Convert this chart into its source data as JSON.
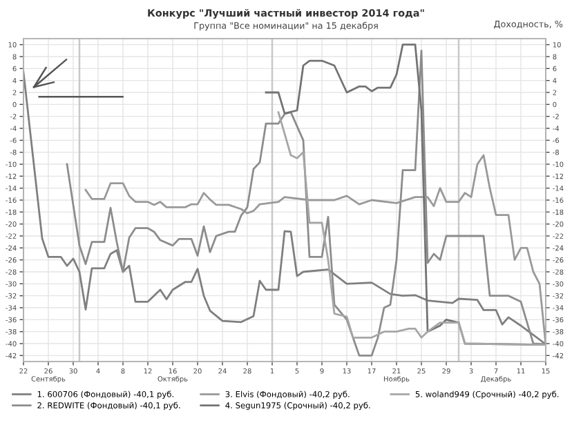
{
  "chart_data": {
    "type": "line",
    "title": "Конкурс \"Лучший частный инвестор 2014 года\"",
    "subtitle": "Группа \"Все номинации\" на 15 декабря",
    "y2label": "Доходность, %",
    "xlim": [
      "2014-09-22",
      "2014-12-15"
    ],
    "xticks": [
      {
        "value": "2014-09-22",
        "label": "22"
      },
      {
        "value": "2014-09-26",
        "label": "26\nСентябрь"
      },
      {
        "value": "2014-09-30",
        "label": "30"
      },
      {
        "value": "2014-10-04",
        "label": "4"
      },
      {
        "value": "2014-10-08",
        "label": "8"
      },
      {
        "value": "2014-10-12",
        "label": "12"
      },
      {
        "value": "2014-10-16",
        "label": "16\nОктябрь"
      },
      {
        "value": "2014-10-20",
        "label": "20"
      },
      {
        "value": "2014-10-24",
        "label": "24"
      },
      {
        "value": "2014-10-28",
        "label": "28"
      },
      {
        "value": "2014-11-01",
        "label": "1"
      },
      {
        "value": "2014-11-05",
        "label": "5"
      },
      {
        "value": "2014-11-09",
        "label": "9"
      },
      {
        "value": "2014-11-13",
        "label": "13"
      },
      {
        "value": "2014-11-17",
        "label": "17"
      },
      {
        "value": "2014-11-21",
        "label": "21\nНоябрь"
      },
      {
        "value": "2014-11-25",
        "label": "25"
      },
      {
        "value": "2014-11-29",
        "label": "29"
      },
      {
        "value": "2014-12-03",
        "label": "3"
      },
      {
        "value": "2014-12-07",
        "label": "7\nДекабрь"
      },
      {
        "value": "2014-12-11",
        "label": "11"
      },
      {
        "value": "2014-12-15",
        "label": "15"
      }
    ],
    "ylim": [
      -43,
      11
    ],
    "yticks": [
      -42,
      -40,
      -38,
      -36,
      -34,
      -32,
      -30,
      -28,
      -26,
      -24,
      -22,
      -20,
      -18,
      -16,
      -14,
      -12,
      -10,
      -8,
      -6,
      -4,
      -2,
      0,
      2,
      4,
      6,
      8,
      10
    ],
    "y2lim": [
      -43,
      11
    ],
    "y2ticks": [
      -42,
      -40,
      -38,
      -36,
      -34,
      -32,
      -30,
      -28,
      -26,
      -24,
      -22,
      -20,
      -18,
      -16,
      -14,
      -12,
      -10,
      -8,
      -6,
      -4,
      -2,
      0,
      2,
      4,
      6,
      8,
      10
    ],
    "grid": true,
    "legend": "bottom",
    "line_style": "solid",
    "marker": "none",
    "ref_lines": [
      {
        "axis": "x",
        "value": "2014-10-01",
        "color": "#c8c8c8"
      },
      {
        "axis": "x",
        "value": "2014-11-01",
        "color": "#c8c8c8"
      },
      {
        "axis": "x",
        "value": "2014-12-01",
        "color": "#c8c8c8"
      }
    ],
    "series": [
      {
        "name": "1. 600706 (Фондовый) -40,1 руб.",
        "color": "#7f7f7f",
        "x": [
          "2014-09-22",
          "2014-09-25",
          "2014-09-26",
          "2014-09-28",
          "2014-09-29",
          "2014-09-30",
          "2014-10-01",
          "2014-10-02",
          "2014-10-03",
          "2014-10-05",
          "2014-10-06",
          "2014-10-07",
          "2014-10-08",
          "2014-10-09",
          "2014-10-10",
          "2014-10-12",
          "2014-10-14",
          "2014-10-15",
          "2014-10-16",
          "2014-10-18",
          "2014-10-19",
          "2014-10-20",
          "2014-10-21",
          "2014-10-22",
          "2014-10-24",
          "2014-10-27",
          "2014-10-29",
          "2014-10-30",
          "2014-10-31",
          "2014-11-02",
          "2014-11-03",
          "2014-11-04",
          "2014-11-05",
          "2014-11-06",
          "2014-11-10",
          "2014-11-13",
          "2014-11-17",
          "2014-11-20",
          "2014-11-22",
          "2014-11-24",
          "2014-11-26",
          "2014-11-30",
          "2014-12-01",
          "2014-12-04",
          "2014-12-05",
          "2014-12-07",
          "2014-12-08",
          "2014-12-09",
          "2014-12-11",
          "2014-12-15"
        ],
        "values": [
          5.4,
          -22.4,
          -25.5,
          -25.5,
          -27,
          -25.8,
          -28,
          -34.3,
          -27.4,
          -27.4,
          -25,
          -24.4,
          -28,
          -27,
          -33,
          -33,
          -31,
          -32.6,
          -31,
          -29.7,
          -29.7,
          -27.5,
          -32,
          -34.5,
          -36.2,
          -36.4,
          -35.4,
          -29.5,
          -31,
          -31,
          -21.2,
          -21.3,
          -28.7,
          -28,
          -27.6,
          -30,
          -29.8,
          -31.7,
          -32,
          -31.9,
          -32.8,
          -33.2,
          -32.5,
          -32.7,
          -34.4,
          -34.4,
          -36.8,
          -35.6,
          -37,
          -40.1
        ]
      },
      {
        "name": "2. REDWITE (Фондовый) -40,1 руб.",
        "color": "#8c8c8c",
        "x": [
          "2014-09-29",
          "2014-10-01",
          "2014-10-02",
          "2014-10-03",
          "2014-10-05",
          "2014-10-06",
          "2014-10-07",
          "2014-10-08",
          "2014-10-09",
          "2014-10-10",
          "2014-10-12",
          "2014-10-13",
          "2014-10-14",
          "2014-10-16",
          "2014-10-17",
          "2014-10-19",
          "2014-10-20",
          "2014-10-21",
          "2014-10-22",
          "2014-10-23",
          "2014-10-25",
          "2014-10-26",
          "2014-10-27",
          "2014-10-28",
          "2014-10-29",
          "2014-10-30",
          "2014-10-31",
          "2014-11-02",
          "2014-11-03",
          "2014-11-04",
          "2014-11-06",
          "2014-11-07",
          "2014-11-09",
          "2014-11-10",
          "2014-11-11",
          "2014-11-13",
          "2014-11-15",
          "2014-11-17",
          "2014-11-18",
          "2014-11-19",
          "2014-11-20",
          "2014-11-21",
          "2014-11-22",
          "2014-11-24",
          "2014-11-25",
          "2014-11-26",
          "2014-11-27",
          "2014-11-28",
          "2014-11-29",
          "2014-12-01",
          "2014-12-03",
          "2014-12-05",
          "2014-12-06",
          "2014-12-09",
          "2014-12-11",
          "2014-12-13",
          "2014-12-15"
        ],
        "values": [
          -10,
          -23.6,
          -26.7,
          -23,
          -23,
          -17.3,
          -23,
          -28,
          -22.3,
          -20.7,
          -20.7,
          -21.3,
          -22.7,
          -23.6,
          -22.5,
          -22.5,
          -25.3,
          -20.4,
          -24.7,
          -22,
          -21.3,
          -21.3,
          -18.6,
          -17.2,
          -10.8,
          -9.7,
          -3.2,
          -3.2,
          -1.6,
          -1.3,
          -6,
          -25.5,
          -25.5,
          -18.8,
          -33.5,
          -36,
          -42,
          -42,
          -39,
          -34,
          -33.5,
          -26,
          -11,
          -11,
          9,
          -26.5,
          -25,
          -26,
          -22,
          -22,
          -22,
          -22,
          -32,
          -32,
          -33,
          -40,
          -40.1
        ]
      },
      {
        "name": "3. Elvis (Фондовый) -40,2 руб.",
        "color": "#999999",
        "x": [
          "2014-10-02",
          "2014-10-03",
          "2014-10-05",
          "2014-10-06",
          "2014-10-08",
          "2014-10-09",
          "2014-10-10",
          "2014-10-12",
          "2014-10-13",
          "2014-10-14",
          "2014-10-15",
          "2014-10-18",
          "2014-10-19",
          "2014-10-20",
          "2014-10-21",
          "2014-10-22",
          "2014-10-23",
          "2014-10-25",
          "2014-10-27",
          "2014-10-28",
          "2014-10-29",
          "2014-10-30",
          "2014-11-02",
          "2014-11-03",
          "2014-11-07",
          "2014-11-11",
          "2014-11-13",
          "2014-11-15",
          "2014-11-17",
          "2014-11-21",
          "2014-11-24",
          "2014-11-26",
          "2014-11-27",
          "2014-11-28",
          "2014-11-29",
          "2014-12-01",
          "2014-12-02",
          "2014-12-03",
          "2014-12-04",
          "2014-12-05",
          "2014-12-06",
          "2014-12-07",
          "2014-12-09",
          "2014-12-10",
          "2014-12-11",
          "2014-12-12",
          "2014-12-13",
          "2014-12-14",
          "2014-12-15"
        ],
        "values": [
          -14.3,
          -15.8,
          -15.8,
          -13.2,
          -13.2,
          -15.3,
          -16.3,
          -16.3,
          -16.8,
          -16.3,
          -17.2,
          -17.2,
          -16.7,
          -16.7,
          -14.8,
          -15.9,
          -16.8,
          -16.8,
          -17.5,
          -18.2,
          -17.8,
          -16.7,
          -16.3,
          -15.5,
          -16,
          -16,
          -15.3,
          -16.7,
          -16,
          -16.5,
          -15.5,
          -15.5,
          -17,
          -14,
          -16.3,
          -16.3,
          -14.8,
          -15.5,
          -10,
          -8.5,
          -14,
          -18.5,
          -18.5,
          -26,
          -24,
          -24,
          -28,
          -30,
          -40.2
        ]
      },
      {
        "name": "4. Segun1975 (Срочный) -40,2 руб.",
        "color": "#737373",
        "x": [
          "2014-10-31",
          "2014-11-02",
          "2014-11-03",
          "2014-11-05",
          "2014-11-06",
          "2014-11-07",
          "2014-11-09",
          "2014-11-11",
          "2014-11-13",
          "2014-11-15",
          "2014-11-16",
          "2014-11-17",
          "2014-11-18",
          "2014-11-20",
          "2014-11-21",
          "2014-11-22",
          "2014-11-24",
          "2014-11-25",
          "2014-11-26",
          "2014-11-28",
          "2014-11-29",
          "2014-12-01",
          "2014-12-02",
          "2014-12-15"
        ],
        "values": [
          2,
          2,
          -1.5,
          -1,
          6.5,
          7.3,
          7.3,
          6.5,
          2,
          3,
          3,
          2.2,
          2.8,
          2.8,
          5,
          10,
          10,
          -1,
          -38,
          -37,
          -36,
          -36.5,
          -40,
          -40.2
        ]
      },
      {
        "name": "5. woland949 (Срочный) -40,2 руб.",
        "color": "#a6a6a6",
        "x": [
          "2014-11-02",
          "2014-11-04",
          "2014-11-05",
          "2014-11-06",
          "2014-11-07",
          "2014-11-09",
          "2014-11-10",
          "2014-11-11",
          "2014-11-13",
          "2014-11-14",
          "2014-11-17",
          "2014-11-19",
          "2014-11-21",
          "2014-11-23",
          "2014-11-24",
          "2014-11-25",
          "2014-11-26",
          "2014-11-28",
          "2014-12-01",
          "2014-12-02",
          "2014-12-15"
        ],
        "values": [
          -1.3,
          -8.5,
          -9,
          -8,
          -19.8,
          -19.8,
          -26,
          -35,
          -35.5,
          -39,
          -39,
          -38,
          -38,
          -37.5,
          -37.5,
          -39,
          -38,
          -36.5,
          -36.5,
          -40,
          -40.2
        ]
      }
    ]
  }
}
